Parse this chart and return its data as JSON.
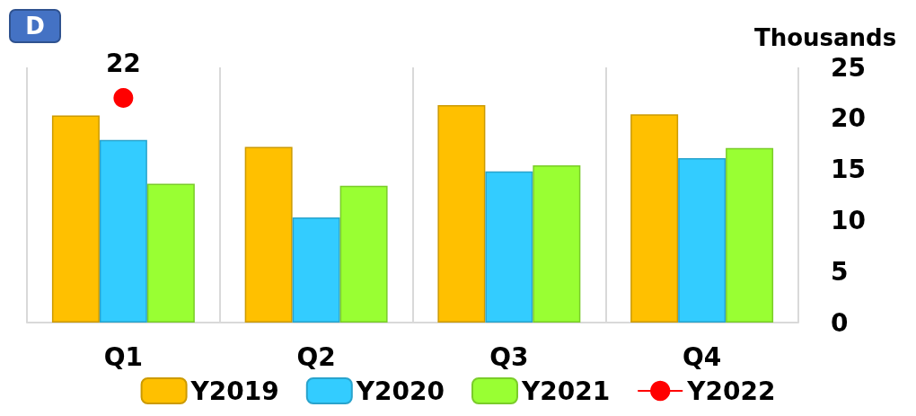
{
  "chart_data": {
    "type": "bar",
    "ylabel": "Thousands",
    "annotations": [
      "D"
    ],
    "categories": [
      "Q1",
      "Q2",
      "Q3",
      "Q4"
    ],
    "series": [
      {
        "name": "Y2019",
        "color": "#ffc000",
        "values": [
          20.3,
          17.2,
          21.3,
          20.4
        ]
      },
      {
        "name": "Y2020",
        "color": "#33ccff",
        "values": [
          17.9,
          10.3,
          14.8,
          16.1
        ]
      },
      {
        "name": "Y2021",
        "color": "#99ff33",
        "values": [
          13.6,
          13.4,
          15.4,
          17.1
        ]
      },
      {
        "name": "Y2022",
        "type": "line",
        "color": "#ff0000",
        "marker": "circle",
        "values": [
          22,
          null,
          null,
          null
        ],
        "value_labels": [
          "22",
          null,
          null,
          null
        ]
      }
    ],
    "ylim": [
      0,
      25
    ],
    "yticks": [
      0,
      5,
      10,
      15,
      20,
      25
    ],
    "grid": "x",
    "legend": "bottom"
  }
}
